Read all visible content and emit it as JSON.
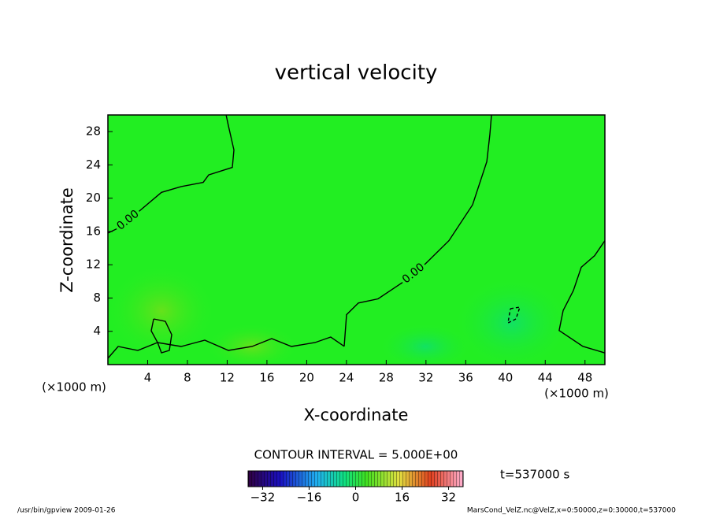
{
  "chart_data": {
    "type": "contour",
    "title": "vertical velocity",
    "x_label": "X-coordinate",
    "y_label": "Z-coordinate",
    "x_unit": "(×1000 m)",
    "xlim": [
      0,
      50
    ],
    "ylim": [
      0,
      30
    ],
    "xticks": [
      4,
      8,
      12,
      16,
      20,
      24,
      28,
      32,
      36,
      40,
      44,
      48
    ],
    "yticks": [
      4,
      8,
      12,
      16,
      20,
      24,
      28
    ],
    "contours": [
      {
        "level": 0,
        "label": "0.00",
        "x": [
          0,
          1.03,
          3.01,
          5.39,
          7.37,
          9.59,
          10.14,
          12.52,
          12.68,
          12.12,
          11.89
        ],
        "y": [
          15.8,
          16.4,
          18.3,
          20.7,
          21.4,
          21.9,
          22.8,
          23.7,
          25.8,
          28.7,
          30.0
        ]
      },
      {
        "level": 0,
        "label": "0.00",
        "x": [
          23.77,
          24.01,
          25.2,
          27.18,
          29.56,
          31.93,
          34.31,
          36.69,
          38.12,
          38.43,
          38.59
        ],
        "y": [
          2.2,
          6.0,
          7.4,
          7.9,
          9.8,
          12.1,
          14.9,
          19.2,
          24.4,
          27.7,
          30.0
        ]
      },
      {
        "level": 0,
        "x": [
          50,
          48.97,
          47.62,
          46.83,
          45.8,
          45.4,
          47.78,
          50
        ],
        "y": [
          14.9,
          13.1,
          11.7,
          8.9,
          6.5,
          4.1,
          2.2,
          1.4
        ]
      },
      {
        "level": 0,
        "x": [
          4.6,
          5.78,
          6.42,
          6.18,
          5.39,
          5.0,
          4.36,
          4.6
        ],
        "y": [
          5.49,
          5.2,
          3.6,
          1.7,
          1.42,
          2.65,
          4.06,
          5.49
        ]
      },
      {
        "level": 0,
        "x": [
          0,
          1.03,
          3.01,
          4.99,
          7.37,
          9.75,
          12.12,
          14.5,
          16.48,
          18.46,
          20.84,
          22.42,
          23.77
        ],
        "y": [
          0.76,
          2.18,
          1.7,
          2.65,
          2.18,
          2.93,
          1.7,
          2.18,
          3.12,
          2.18,
          2.65,
          3.31,
          2.2
        ]
      },
      {
        "level": -5,
        "x": [
          40.49,
          41.44,
          41.05,
          40.25,
          40.49
        ],
        "y": [
          6.72,
          6.91,
          5.49,
          5.01,
          6.72
        ]
      }
    ],
    "contour_interval": "CONTOUR INTERVAL = 5.000E+00",
    "colorbar": {
      "clim": [
        -37,
        37
      ],
      "ticks": [
        {
          "value": -32,
          "label": "−32"
        },
        {
          "value": -16,
          "label": "−16"
        },
        0,
        16,
        32
      ]
    },
    "time_label": "t=537000 s",
    "footer_left": "/usr/bin/gpview  2009-01-26",
    "footer_right": "MarsCond_VelZ.nc@VelZ,x=0:50000,z=0:30000,t=537000"
  }
}
